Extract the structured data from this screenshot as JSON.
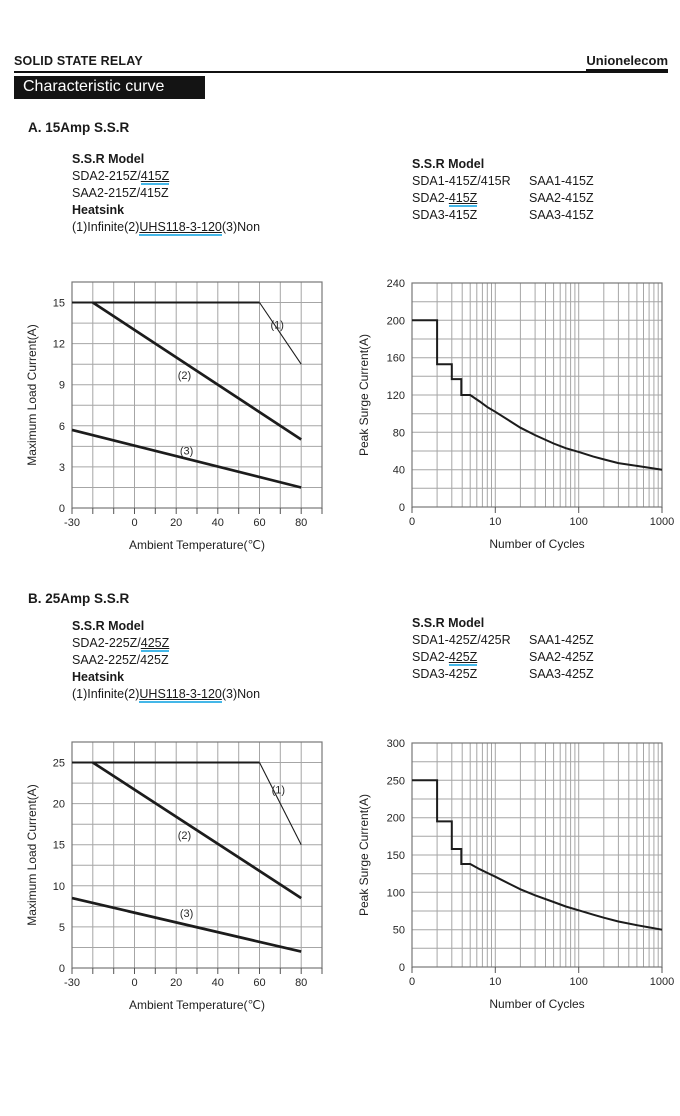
{
  "header": {
    "doc_type": "SOLID STATE RELAY",
    "brand": "Unionelecom",
    "banner": "Characteristic curve"
  },
  "colors": {
    "ink": "#1a1a1a",
    "grid": "#a6a6a6",
    "plot_border": "#777777",
    "curve": "#1c1c1c",
    "link_underline": "#44b7e8",
    "banner_bg": "#141414",
    "banner_fg": "#ffffff"
  },
  "sections": [
    {
      "heading": "A. 15Amp S.S.R",
      "left_block": {
        "title": "S.S.R Model",
        "lines": [
          [
            {
              "t": "SDA2-215Z/"
            },
            {
              "t": "415Z",
              "u": true
            }
          ],
          [
            {
              "t": "SAA2-215Z/415Z"
            }
          ]
        ],
        "subtitle": "Heatsink",
        "sub_lines": [
          [
            {
              "t": "(1)Infinite(2)"
            },
            {
              "t": "UHS118-3-120",
              "u": true
            },
            {
              "t": "(3)Non"
            }
          ]
        ]
      },
      "right_block": {
        "title": "S.S.R Model",
        "rows": [
          [
            [
              {
                "t": "SDA1-415Z/415R"
              }
            ],
            [
              {
                "t": "SAA1-415Z"
              }
            ]
          ],
          [
            [
              {
                "t": "SDA2-"
              },
              {
                "t": "415Z",
                "u": true
              }
            ],
            [
              {
                "t": "SAA2-415Z"
              }
            ]
          ],
          [
            [
              {
                "t": "SDA3-415Z"
              }
            ],
            [
              {
                "t": "SAA3-415Z"
              }
            ]
          ]
        ]
      }
    },
    {
      "heading": "B. 25Amp S.S.R",
      "left_block": {
        "title": "S.S.R Model",
        "lines": [
          [
            {
              "t": "SDA2-225Z/"
            },
            {
              "t": "425Z",
              "u": true
            }
          ],
          [
            {
              "t": "SAA2-225Z/425Z"
            }
          ]
        ],
        "subtitle": "Heatsink",
        "sub_lines": [
          [
            {
              "t": "(1)Infinite(2)"
            },
            {
              "t": "UHS118-3-120",
              "u": true
            },
            {
              "t": "(3)Non"
            }
          ]
        ]
      },
      "right_block": {
        "title": "S.S.R Model",
        "rows": [
          [
            [
              {
                "t": "SDA1-425Z/425R"
              }
            ],
            [
              {
                "t": "SAA1-425Z"
              }
            ]
          ],
          [
            [
              {
                "t": "SDA2-"
              },
              {
                "t": "425Z",
                "u": true
              }
            ],
            [
              {
                "t": "SAA2-425Z"
              }
            ]
          ],
          [
            [
              {
                "t": "SDA3-425Z"
              }
            ],
            [
              {
                "t": "SAA3-425Z"
              }
            ]
          ]
        ]
      }
    }
  ],
  "chart_data": [
    {
      "name": "max-load-current-15a",
      "type": "line",
      "xscale": "linear",
      "title": "",
      "xlabel": "Ambient Temperature(℃)",
      "ylabel": "Maximum Load Current(A)",
      "xlim": [
        -30,
        90
      ],
      "xgrid": 10,
      "xticks": [
        {
          "v": -30,
          "label": "-30"
        },
        {
          "v": 0,
          "label": "0"
        },
        {
          "v": 20,
          "label": "20"
        },
        {
          "v": 40,
          "label": "40"
        },
        {
          "v": 60,
          "label": "60"
        },
        {
          "v": 80,
          "label": "80"
        }
      ],
      "ylim": [
        0,
        16.5
      ],
      "ygrid": 1.5,
      "yticks": [
        0,
        3,
        6,
        9,
        12,
        15
      ],
      "grid": true,
      "legend": "inline-curve-labels",
      "series": [
        {
          "name": "curve-1-flat",
          "weight": "medium",
          "points": [
            [
              -30,
              15
            ],
            [
              60,
              15
            ]
          ]
        },
        {
          "name": "curve-1",
          "weight": "thin",
          "label": "(1)",
          "label_at": [
            68.5,
            13.4
          ],
          "points": [
            [
              60,
              15
            ],
            [
              80,
              10.5
            ]
          ]
        },
        {
          "name": "curve-2",
          "weight": "thick",
          "label": "(2)",
          "label_at": [
            24,
            9.7
          ],
          "points": [
            [
              -20,
              15
            ],
            [
              80,
              5
            ]
          ]
        },
        {
          "name": "curve-3",
          "weight": "thick",
          "label": "(3)",
          "label_at": [
            25,
            4.2
          ],
          "points": [
            [
              -30,
              5.7
            ],
            [
              80,
              1.5
            ]
          ]
        }
      ]
    },
    {
      "name": "peak-surge-current-15a",
      "type": "line",
      "xscale": "log",
      "title": "",
      "xlabel": "Number of Cycles",
      "ylabel": "Peak Surge Current(A)",
      "xlim": [
        1,
        1000
      ],
      "xticks": [
        {
          "v": 1,
          "label": "0"
        },
        {
          "v": 10,
          "label": "10"
        },
        {
          "v": 100,
          "label": "100"
        },
        {
          "v": 1000,
          "label": "1000"
        }
      ],
      "ylim": [
        0,
        240
      ],
      "ygrid": 20,
      "yticks": [
        0,
        40,
        80,
        120,
        160,
        200,
        240
      ],
      "grid": true,
      "series": [
        {
          "name": "surge-curve",
          "weight": "medium",
          "points": [
            [
              1,
              200
            ],
            [
              2,
              200
            ],
            [
              2,
              153
            ],
            [
              3,
              153
            ],
            [
              3,
              137
            ],
            [
              3.9,
              137
            ],
            [
              3.9,
              120
            ],
            [
              5,
              120
            ],
            [
              6.5,
              113
            ],
            [
              8,
              107
            ],
            [
              10,
              102
            ],
            [
              15,
              92
            ],
            [
              20,
              85
            ],
            [
              30,
              77
            ],
            [
              50,
              68
            ],
            [
              70,
              63
            ],
            [
              100,
              59
            ],
            [
              150,
              54
            ],
            [
              200,
              51
            ],
            [
              300,
              47
            ],
            [
              500,
              44
            ],
            [
              700,
              42
            ],
            [
              1000,
              40
            ]
          ]
        }
      ]
    },
    {
      "name": "max-load-current-25a",
      "type": "line",
      "xscale": "linear",
      "title": "",
      "xlabel": "Ambient Temperature(℃)",
      "ylabel": "Maximum Load Current(A)",
      "xlim": [
        -30,
        90
      ],
      "xgrid": 10,
      "xticks": [
        {
          "v": -30,
          "label": "-30"
        },
        {
          "v": 0,
          "label": "0"
        },
        {
          "v": 20,
          "label": "20"
        },
        {
          "v": 40,
          "label": "40"
        },
        {
          "v": 60,
          "label": "60"
        },
        {
          "v": 80,
          "label": "80"
        }
      ],
      "ylim": [
        0,
        27.5
      ],
      "ygrid": 2.5,
      "yticks": [
        0,
        5,
        10,
        15,
        20,
        25
      ],
      "grid": true,
      "legend": "inline-curve-labels",
      "series": [
        {
          "name": "curve-1-flat",
          "weight": "medium",
          "points": [
            [
              -30,
              25
            ],
            [
              60,
              25
            ]
          ]
        },
        {
          "name": "curve-1",
          "weight": "thin",
          "label": "(1)",
          "label_at": [
            69,
            21.7
          ],
          "points": [
            [
              60,
              25
            ],
            [
              80,
              15
            ]
          ]
        },
        {
          "name": "curve-2",
          "weight": "thick",
          "label": "(2)",
          "label_at": [
            24,
            16.2
          ],
          "points": [
            [
              -20,
              25
            ],
            [
              80,
              8.5
            ]
          ]
        },
        {
          "name": "curve-3",
          "weight": "thick",
          "label": "(3)",
          "label_at": [
            25,
            6.7
          ],
          "points": [
            [
              -30,
              8.5
            ],
            [
              80,
              2
            ]
          ]
        }
      ]
    },
    {
      "name": "peak-surge-current-25a",
      "type": "line",
      "xscale": "log",
      "title": "",
      "xlabel": "Number of Cycles",
      "ylabel": "Peak Surge Current(A)",
      "xlim": [
        1,
        1000
      ],
      "xticks": [
        {
          "v": 1,
          "label": "0"
        },
        {
          "v": 10,
          "label": "10"
        },
        {
          "v": 100,
          "label": "100"
        },
        {
          "v": 1000,
          "label": "1000"
        }
      ],
      "ylim": [
        0,
        300
      ],
      "ygrid": 25,
      "yticks": [
        0,
        50,
        100,
        150,
        200,
        250,
        300
      ],
      "grid": true,
      "series": [
        {
          "name": "surge-curve",
          "weight": "medium",
          "points": [
            [
              1,
              250
            ],
            [
              2,
              250
            ],
            [
              2,
              195
            ],
            [
              3,
              195
            ],
            [
              3,
              158
            ],
            [
              3.9,
              158
            ],
            [
              3.9,
              138
            ],
            [
              5,
              138
            ],
            [
              6.5,
              131
            ],
            [
              8,
              126
            ],
            [
              10,
              121
            ],
            [
              15,
              111
            ],
            [
              20,
              104
            ],
            [
              30,
              96
            ],
            [
              50,
              87
            ],
            [
              70,
              81
            ],
            [
              100,
              76
            ],
            [
              150,
              70
            ],
            [
              200,
              66
            ],
            [
              300,
              61
            ],
            [
              500,
              56
            ],
            [
              700,
              53
            ],
            [
              1000,
              50
            ]
          ]
        }
      ]
    }
  ]
}
